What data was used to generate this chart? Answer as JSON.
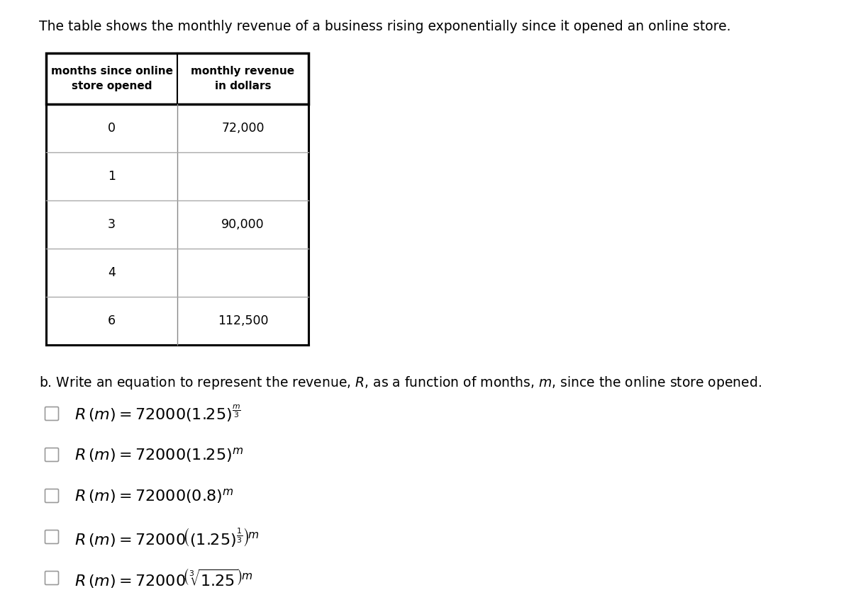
{
  "title": "The table shows the monthly revenue of a business rising exponentially since it opened an online store.",
  "table_col1_header": "months since online\nstore opened",
  "table_col2_header": "monthly revenue\nin dollars",
  "table_rows": [
    [
      "0",
      "72,000"
    ],
    [
      "1",
      ""
    ],
    [
      "3",
      "90,000"
    ],
    [
      "4",
      ""
    ],
    [
      "6",
      "112,500"
    ]
  ],
  "bg_color": "#ffffff",
  "text_color": "#000000",
  "title_fontsize": 13.5,
  "header_fontsize": 11,
  "cell_fontsize": 12.5,
  "partb_fontsize": 13.5,
  "choice_fontsize": 16
}
